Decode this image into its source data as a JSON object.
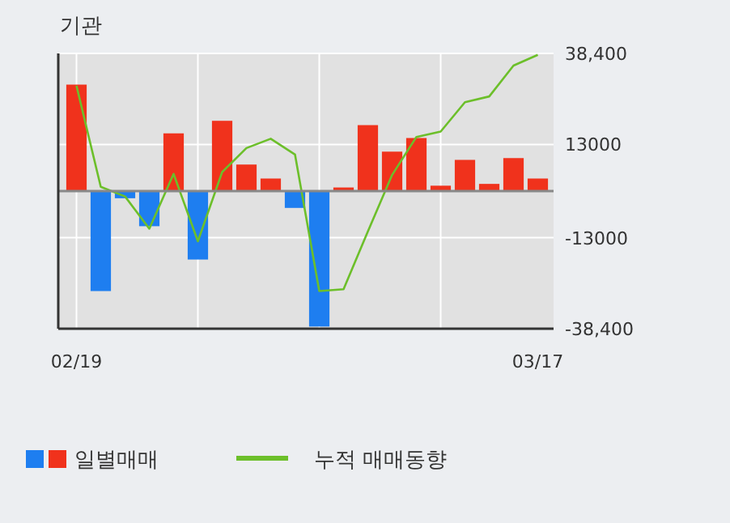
{
  "chart_data": {
    "type": "bar",
    "title": "기관",
    "categories": [
      "02/19",
      null,
      null,
      null,
      null,
      null,
      null,
      null,
      null,
      null,
      null,
      null,
      null,
      null,
      null,
      null,
      null,
      null,
      null,
      "03/17"
    ],
    "series": [
      {
        "name": "일별매매",
        "colors": [
          "#f0321c",
          "#1e7ef0",
          "#1e7ef0",
          "#1e7ef0",
          "#f0321c",
          "#1e7ef0",
          "#f0321c",
          "#f0321c",
          "#f0321c",
          "#1e7ef0",
          "#1e7ef0",
          "#f0321c",
          "#f0321c",
          "#f0321c",
          "#f0321c",
          "#f0321c",
          "#f0321c",
          "#f0321c",
          "#f0321c",
          "#f0321c"
        ],
        "values": [
          29700,
          -27900,
          -2000,
          -9800,
          16100,
          -19100,
          19600,
          7400,
          3500,
          -4700,
          -37800,
          1000,
          18400,
          11000,
          14800,
          1500,
          8700,
          2000,
          9200,
          3500
        ]
      },
      {
        "type": "line",
        "name": "누적 매매동향",
        "color": "#6cbf2a",
        "values": [
          29400,
          1200,
          -1500,
          -10500,
          4800,
          -14000,
          5300,
          12000,
          14600,
          10200,
          -27900,
          -27400,
          -11300,
          4500,
          15100,
          16600,
          24800,
          26400,
          35000,
          38000
        ]
      }
    ],
    "ylim": [
      -38400,
      38400
    ],
    "yticks": [
      {
        "value": 38400,
        "label": "38,400"
      },
      13000,
      {
        "value": -13000,
        "label": "-13000"
      },
      {
        "value": -38400,
        "label": "-38,400"
      }
    ],
    "grid": true,
    "legend": "bottom"
  }
}
